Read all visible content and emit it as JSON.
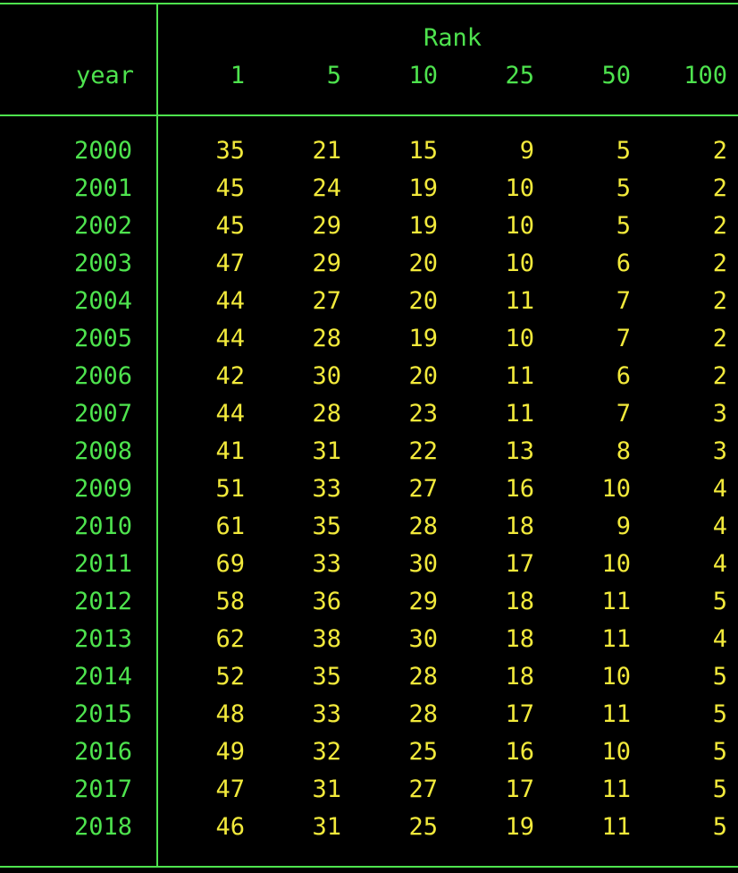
{
  "colors": {
    "background": "#000000",
    "header_text": "#4ee34e",
    "value_text": "#f2e93b",
    "rule": "#4ee34e"
  },
  "table": {
    "group_header": "Rank",
    "row_header": "year",
    "columns": [
      "1",
      "5",
      "10",
      "25",
      "50",
      "100"
    ],
    "rows": [
      {
        "year": "2000",
        "values": [
          "35",
          "21",
          "15",
          "9",
          "5",
          "2"
        ]
      },
      {
        "year": "2001",
        "values": [
          "45",
          "24",
          "19",
          "10",
          "5",
          "2"
        ]
      },
      {
        "year": "2002",
        "values": [
          "45",
          "29",
          "19",
          "10",
          "5",
          "2"
        ]
      },
      {
        "year": "2003",
        "values": [
          "47",
          "29",
          "20",
          "10",
          "6",
          "2"
        ]
      },
      {
        "year": "2004",
        "values": [
          "44",
          "27",
          "20",
          "11",
          "7",
          "2"
        ]
      },
      {
        "year": "2005",
        "values": [
          "44",
          "28",
          "19",
          "10",
          "7",
          "2"
        ]
      },
      {
        "year": "2006",
        "values": [
          "42",
          "30",
          "20",
          "11",
          "6",
          "2"
        ]
      },
      {
        "year": "2007",
        "values": [
          "44",
          "28",
          "23",
          "11",
          "7",
          "3"
        ]
      },
      {
        "year": "2008",
        "values": [
          "41",
          "31",
          "22",
          "13",
          "8",
          "3"
        ]
      },
      {
        "year": "2009",
        "values": [
          "51",
          "33",
          "27",
          "16",
          "10",
          "4"
        ]
      },
      {
        "year": "2010",
        "values": [
          "61",
          "35",
          "28",
          "18",
          "9",
          "4"
        ]
      },
      {
        "year": "2011",
        "values": [
          "69",
          "33",
          "30",
          "17",
          "10",
          "4"
        ]
      },
      {
        "year": "2012",
        "values": [
          "58",
          "36",
          "29",
          "18",
          "11",
          "5"
        ]
      },
      {
        "year": "2013",
        "values": [
          "62",
          "38",
          "30",
          "18",
          "11",
          "4"
        ]
      },
      {
        "year": "2014",
        "values": [
          "52",
          "35",
          "28",
          "18",
          "10",
          "5"
        ]
      },
      {
        "year": "2015",
        "values": [
          "48",
          "33",
          "28",
          "17",
          "11",
          "5"
        ]
      },
      {
        "year": "2016",
        "values": [
          "49",
          "32",
          "25",
          "16",
          "10",
          "5"
        ]
      },
      {
        "year": "2017",
        "values": [
          "47",
          "31",
          "27",
          "17",
          "11",
          "5"
        ]
      },
      {
        "year": "2018",
        "values": [
          "46",
          "31",
          "25",
          "19",
          "11",
          "5"
        ]
      }
    ]
  }
}
